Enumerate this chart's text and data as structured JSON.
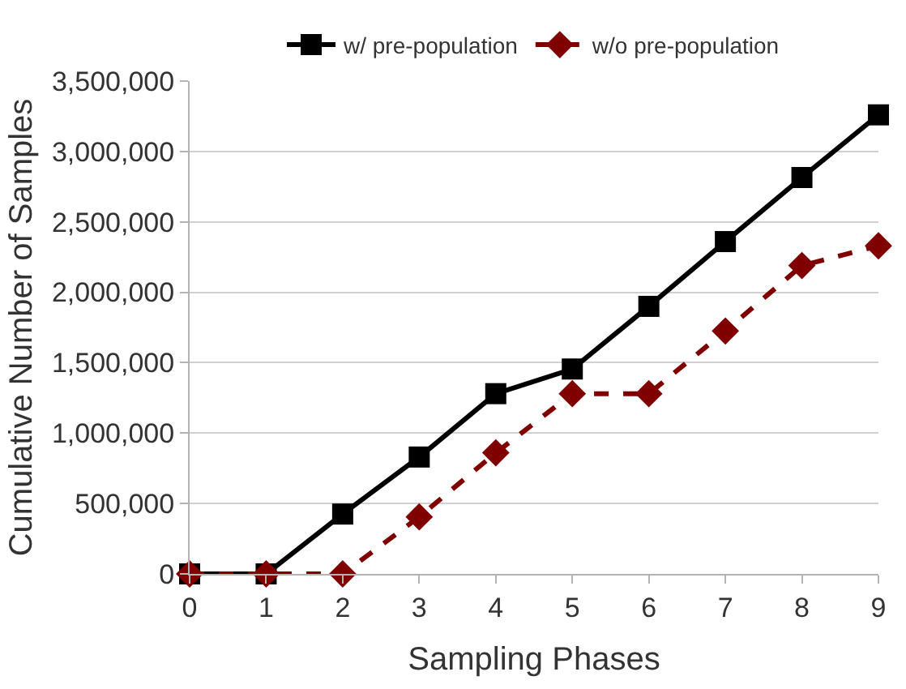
{
  "chart_data": {
    "type": "line",
    "xlabel": "Sampling Phases",
    "ylabel": "Cumulative Number of Samples",
    "x": [
      0,
      1,
      2,
      3,
      4,
      5,
      6,
      7,
      8,
      9
    ],
    "series": [
      {
        "name": "w/ pre-population",
        "color": "#000000",
        "marker": "square",
        "line_style": "solid",
        "values": [
          0,
          0,
          425000,
          830000,
          1280000,
          1455000,
          1900000,
          2360000,
          2815000,
          3260000
        ]
      },
      {
        "name": "w/o pre-population",
        "color": "#800000",
        "marker": "diamond",
        "line_style": "dashed",
        "values": [
          0,
          0,
          0,
          405000,
          860000,
          1280000,
          1280000,
          1725000,
          2190000,
          2330000
        ]
      }
    ],
    "xlim": [
      0,
      9
    ],
    "xticks": [
      0,
      1,
      2,
      3,
      4,
      5,
      6,
      7,
      8,
      9
    ],
    "ylim": [
      0,
      3500000
    ],
    "yticks": [
      {
        "value": 0,
        "label": "0"
      },
      {
        "value": 500000,
        "label": "500,000"
      },
      {
        "value": 1000000,
        "label": "1,000,000"
      },
      {
        "value": 1500000,
        "label": "1,500,000"
      },
      {
        "value": 2000000,
        "label": "2,000,000"
      },
      {
        "value": 2500000,
        "label": "2,500,000"
      },
      {
        "value": 3000000,
        "label": "3,000,000"
      },
      {
        "value": 3500000,
        "label": "3,500,000"
      }
    ],
    "grid": "y",
    "legend": "top"
  }
}
